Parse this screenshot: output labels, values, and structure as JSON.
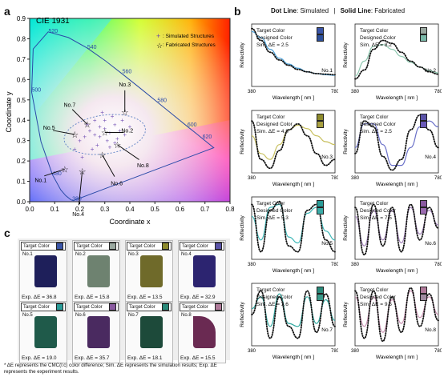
{
  "panel_a": {
    "letter": "a",
    "title": "CIE 1931",
    "legend_simulated": ": Simulated Structures",
    "legend_fabricated": ": Fabricated Structures",
    "xlabel": "Coordinate x",
    "ylabel": "Coordinate y"
  },
  "panel_b": {
    "letter": "b",
    "header_dot": "Dot Line",
    "header_dot_text": ": Simulated",
    "header_sep": "|",
    "header_solid": "Solid Line",
    "header_solid_text": ": Fabricated",
    "ylabel": "Reflectivity",
    "xlabel": "Wavelength [ nm ]",
    "x_start": "380",
    "x_end": "780",
    "target_label": "Target Color",
    "designed_label": "Designed Color"
  },
  "panel_c": {
    "letter": "c",
    "target_label": "Target Color",
    "samples": [
      {
        "no": "No.1",
        "exp": "Exp. ΔE = 36.8",
        "target": "#3a55a8",
        "film": "#1e1f5a"
      },
      {
        "no": "No.2",
        "exp": "Exp. ΔE = 15.8",
        "target": "#9aa8a0",
        "film": "#6e8270"
      },
      {
        "no": "No.3",
        "exp": "Exp. ΔE = 13.5",
        "target": "#8d8a2c",
        "film": "#6f6a2a"
      },
      {
        "no": "No.4",
        "exp": "Exp. ΔE = 32.9",
        "target": "#5a53a8",
        "film": "#2c2470"
      },
      {
        "no": "No.5",
        "exp": "Exp. ΔE = 19.0",
        "target": "#2a9c98",
        "film": "#1f5a4a"
      },
      {
        "no": "No.6",
        "exp": "Exp. ΔE = 35.7",
        "target": "#8a5aa0",
        "film": "#4a2a60"
      },
      {
        "no": "No.7",
        "exp": "Exp. ΔE = 18.1",
        "target": "#2a8a7a",
        "film": "#1d4a3a"
      },
      {
        "no": "No.8",
        "exp": "Exp. ΔE = 15.5",
        "target": "#b07a9a",
        "film": "#6a2a52"
      }
    ]
  },
  "footnote": "* ΔE represents the CMC(l:c) color difference; Sim. ΔE represents the simulation results; Exp. ΔE represents the experiment results.",
  "chart_data": [
    {
      "type": "scatter",
      "title": "CIE 1931",
      "xlabel": "Coordinate x",
      "ylabel": "Coordinate y",
      "xlim": [
        0,
        0.8
      ],
      "ylim": [
        0,
        0.9
      ],
      "xticks": [
        "0.0",
        "0.1",
        "0.2",
        "0.3",
        "0.4",
        "0.5",
        "0.6",
        "0.7",
        "0.8"
      ],
      "yticks": [
        "0.0",
        "0.1",
        "0.2",
        "0.3",
        "0.4",
        "0.5",
        "0.6",
        "0.7",
        "0.8",
        "0.9"
      ],
      "locus_labels": [
        {
          "text": "380",
          "x": 0.17,
          "y": 0.005
        },
        {
          "text": "480",
          "x": 0.09,
          "y": 0.13
        },
        {
          "text": "500",
          "x": 0.008,
          "y": 0.54
        },
        {
          "text": "520",
          "x": 0.075,
          "y": 0.83
        },
        {
          "text": "540",
          "x": 0.23,
          "y": 0.75
        },
        {
          "text": "560",
          "x": 0.37,
          "y": 0.63
        },
        {
          "text": "580",
          "x": 0.51,
          "y": 0.49
        },
        {
          "text": "600",
          "x": 0.63,
          "y": 0.37
        },
        {
          "text": "620",
          "x": 0.69,
          "y": 0.31
        }
      ],
      "series": [
        {
          "name": ": Simulated Structures",
          "points": [
            [
              0.2,
              0.3
            ],
            [
              0.22,
              0.32
            ],
            [
              0.24,
              0.35
            ],
            [
              0.26,
              0.33
            ],
            [
              0.28,
              0.37
            ],
            [
              0.3,
              0.36
            ],
            [
              0.32,
              0.34
            ],
            [
              0.34,
              0.38
            ],
            [
              0.36,
              0.35
            ],
            [
              0.38,
              0.33
            ],
            [
              0.3,
              0.4
            ],
            [
              0.33,
              0.42
            ],
            [
              0.27,
              0.28
            ],
            [
              0.25,
              0.26
            ],
            [
              0.31,
              0.3
            ],
            [
              0.35,
              0.31
            ],
            [
              0.23,
              0.38
            ],
            [
              0.29,
              0.44
            ],
            [
              0.37,
              0.4
            ],
            [
              0.4,
              0.37
            ],
            [
              0.18,
              0.26
            ],
            [
              0.21,
              0.22
            ],
            [
              0.26,
              0.4
            ],
            [
              0.32,
              0.27
            ],
            [
              0.28,
              0.32
            ],
            [
              0.34,
              0.29
            ]
          ]
        },
        {
          "name": ": Fabricated Structures",
          "points": [
            [
              0.14,
              0.16
            ],
            [
              0.38,
              0.44
            ],
            [
              0.23,
              0.38
            ],
            [
              0.35,
              0.28
            ],
            [
              0.18,
              0.33
            ],
            [
              0.29,
              0.23
            ],
            [
              0.21,
              0.15
            ],
            [
              0.3,
              0.34
            ]
          ]
        }
      ],
      "annotations": [
        {
          "text": "No.1",
          "x": 0.14,
          "y": 0.16
        },
        {
          "text": "No.2",
          "x": 0.3,
          "y": 0.34
        },
        {
          "text": "No.3",
          "x": 0.38,
          "y": 0.44
        },
        {
          "text": "No.4",
          "x": 0.21,
          "y": 0.15
        },
        {
          "text": "No.5",
          "x": 0.18,
          "y": 0.33
        },
        {
          "text": "No.6",
          "x": 0.29,
          "y": 0.23
        },
        {
          "text": "No.7",
          "x": 0.23,
          "y": 0.38
        },
        {
          "text": "No.8",
          "x": 0.35,
          "y": 0.28
        }
      ]
    },
    {
      "type": "line",
      "panels": [
        {
          "no": "No.1",
          "sim": "Sim. ΔE = 2.5",
          "target": "#3a55a8",
          "designed": "#2c4f9a",
          "sim_curve": [
            0.95,
            0.75,
            0.55,
            0.42,
            0.33,
            0.26,
            0.22,
            0.19,
            0.18,
            0.17
          ],
          "fab_curve": [
            0.9,
            0.8,
            0.6,
            0.45,
            0.35,
            0.28,
            0.22,
            0.19,
            0.17,
            0.16
          ],
          "line_color": "#4aa0d8"
        },
        {
          "no": "No.2",
          "sim": "Sim. ΔE = 8.2",
          "target": "#9aa8a0",
          "designed": "#7ab8a8",
          "sim_curve": [
            0.1,
            0.25,
            0.6,
            0.75,
            0.7,
            0.55,
            0.4,
            0.3,
            0.22,
            0.18
          ],
          "fab_curve": [
            0.15,
            0.4,
            0.65,
            0.68,
            0.6,
            0.48,
            0.38,
            0.3,
            0.24,
            0.2
          ],
          "line_color": "#8ec8b0"
        },
        {
          "no": "No.3",
          "sim": "Sim. ΔE = 4.8",
          "target": "#8d8a2c",
          "designed": "#a8a040",
          "sim_curve": [
            0.85,
            0.2,
            0.05,
            0.35,
            0.7,
            0.8,
            0.6,
            0.3,
            0.1,
            0.2
          ],
          "fab_curve": [
            0.6,
            0.3,
            0.2,
            0.45,
            0.7,
            0.78,
            0.72,
            0.6,
            0.5,
            0.45
          ],
          "line_color": "#c8c060"
        },
        {
          "no": "No.4",
          "sim": "Sim. ΔE = 2.5",
          "target": "#5a53a8",
          "designed": "#6a5ab8",
          "sim_curve": [
            0.3,
            0.85,
            0.75,
            0.25,
            0.02,
            0.2,
            0.7,
            0.95,
            0.7,
            0.4
          ],
          "fab_curve": [
            0.4,
            0.8,
            0.8,
            0.45,
            0.1,
            0.1,
            0.4,
            0.75,
            0.85,
            0.75
          ],
          "line_color": "#6a70c8"
        },
        {
          "no": "No.5",
          "sim": "Sim. ΔE = 5.3",
          "target": "#2a9c98",
          "designed": "#3aaca8",
          "sim_curve": [
            0.9,
            0.1,
            0.8,
            0.95,
            0.2,
            0.1,
            0.8,
            0.9,
            0.3,
            0.1
          ],
          "fab_curve": [
            0.7,
            0.3,
            0.85,
            0.9,
            0.35,
            0.25,
            0.75,
            0.85,
            0.45,
            0.3
          ],
          "line_color": "#40b8b8"
        },
        {
          "no": "No.6",
          "sim": "Sim. ΔE = 7.5",
          "target": "#8a5aa0",
          "designed": "#9a6ab0",
          "sim_curve": [
            0.85,
            0.05,
            0.9,
            0.2,
            0.85,
            0.1,
            0.9,
            0.3,
            0.85,
            0.5
          ],
          "fab_curve": [
            0.7,
            0.2,
            0.8,
            0.3,
            0.8,
            0.25,
            0.85,
            0.4,
            0.8,
            0.55
          ],
          "line_color": "#a080b8"
        },
        {
          "no": "No.7",
          "sim": "Sim. ΔE = 3.6",
          "target": "#2a8a7a",
          "designed": "#3a9a8a",
          "sim_curve": [
            0.5,
            0.9,
            0.1,
            0.8,
            0.3,
            0.1,
            0.9,
            0.2,
            0.85,
            0.3
          ],
          "fab_curve": [
            0.6,
            0.8,
            0.3,
            0.85,
            0.35,
            0.3,
            0.8,
            0.35,
            0.75,
            0.4
          ],
          "line_color": "#30a8a0"
        },
        {
          "no": "No.8",
          "sim": "Sim. ΔE = 9.5",
          "target": "#b07a9a",
          "designed": "#a08aa0",
          "sim_curve": [
            0.9,
            0.1,
            0.9,
            0.05,
            0.8,
            0.2,
            0.95,
            0.3,
            0.85,
            0.4
          ],
          "fab_curve": [
            0.8,
            0.3,
            0.8,
            0.2,
            0.75,
            0.35,
            0.9,
            0.45,
            0.8,
            0.5
          ],
          "line_color": "#c890b0"
        }
      ]
    }
  ]
}
